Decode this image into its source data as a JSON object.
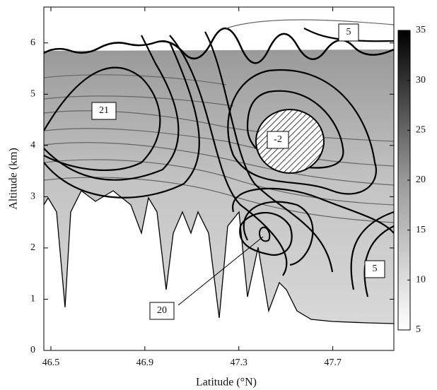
{
  "chart_data": {
    "type": "contour",
    "x_label": "Latitude (°N)",
    "y_label": "Altitude (km)",
    "xlim": [
      46.47,
      47.96
    ],
    "xticks": [
      46.5,
      46.9,
      47.3,
      47.7
    ],
    "ylim": [
      0,
      6.7
    ],
    "yticks": [
      0,
      1,
      2,
      3,
      4,
      5,
      6
    ],
    "colorbar": {
      "lim": [
        5,
        35
      ],
      "ticks": [
        5,
        10,
        15,
        20,
        25,
        30,
        35
      ]
    },
    "annotations": [
      "5",
      "21",
      "-2",
      "20",
      "5"
    ]
  }
}
